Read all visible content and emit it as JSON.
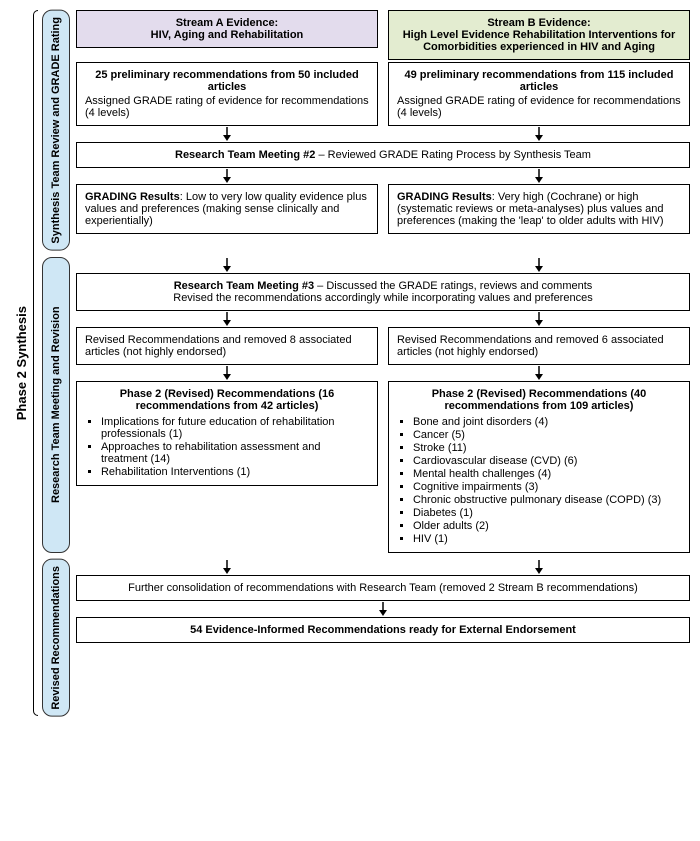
{
  "phase_label": "Phase 2 Synthesis",
  "sections": [
    {
      "label": "Synthesis Team Review and GRADE Rating"
    },
    {
      "label": "Research Team Meeting and Revision"
    },
    {
      "label": "Revised Recommendations"
    }
  ],
  "stream_a": {
    "header_title": "Stream A Evidence:",
    "header_sub": "HIV, Aging and Rehabilitation",
    "prelim_title": "25 preliminary recommendations from 50 included articles",
    "prelim_sub": "Assigned GRADE rating of evidence for recommendations (4 levels)",
    "grading_label": "GRADING Results",
    "grading_text": ": Low to very low quality evidence plus values and preferences (making sense clinically and experientially)",
    "revised_removed": "Revised Recommendations and removed 8 associated articles (not highly endorsed)",
    "phase2_title": "Phase 2 (Revised) Recommendations (16 recommendations from 42 articles)",
    "phase2_items": [
      "Implications for future education of rehabilitation professionals (1)",
      "Approaches to rehabilitation assessment and treatment (14)",
      "Rehabilitation Interventions (1)"
    ]
  },
  "stream_b": {
    "header_title": "Stream B Evidence:",
    "header_sub": "High Level Evidence Rehabilitation Interventions for Comorbidities experienced in HIV and Aging",
    "prelim_title": "49 preliminary recommendations from 115 included articles",
    "prelim_sub": "Assigned GRADE rating of evidence for recommendations (4 levels)",
    "grading_label": "GRADING Results",
    "grading_text": ": Very high (Cochrane) or high (systematic reviews or meta-analyses) plus values and preferences (making the 'leap' to older adults with HIV)",
    "revised_removed": "Revised Recommendations and removed 6 associated articles (not highly endorsed)",
    "phase2_title": "Phase 2 (Revised) Recommendations (40 recommendations from 109 articles)",
    "phase2_items": [
      "Bone and joint disorders (4)",
      "Cancer (5)",
      "Stroke (11)",
      "Cardiovascular disease (CVD) (6)",
      "Mental health challenges (4)",
      "Cognitive impairments (3)",
      "Chronic obstructive pulmonary disease (COPD) (3)",
      "Diabetes (1)",
      "Older adults (2)",
      "HIV (1)"
    ]
  },
  "meeting2_label": "Research Team Meeting #2",
  "meeting2_text": " – Reviewed GRADE Rating Process by Synthesis Team",
  "meeting3_label": "Research Team Meeting #3",
  "meeting3_text": " – Discussed the GRADE ratings, reviews and comments\nRevised the recommendations accordingly while incorporating values and preferences",
  "further_consolidation": "Further consolidation of recommendations with Research Team (removed 2 Stream B recommendations)",
  "final": "54 Evidence-Informed Recommendations ready for External Endorsement",
  "colors": {
    "section_bg": "#cfe7f5",
    "stream_a_bg": "#e3dced",
    "stream_b_bg": "#e3ecd0",
    "border": "#000000"
  }
}
